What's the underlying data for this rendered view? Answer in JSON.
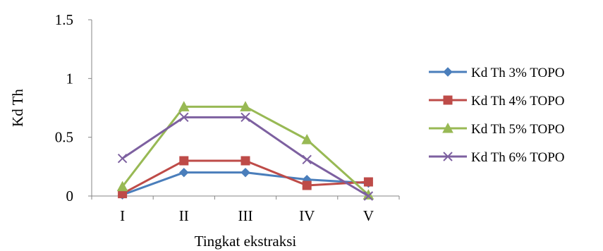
{
  "chart_data": {
    "type": "line",
    "title": "",
    "xlabel": "Tingkat ekstraksi",
    "ylabel": "Kd Th",
    "categories": [
      "I",
      "II",
      "III",
      "IV",
      "V"
    ],
    "ylim": [
      0,
      1.5
    ],
    "yticks": [
      0,
      0.5,
      1,
      1.5
    ],
    "grid": false,
    "legend_position": "right",
    "series": [
      {
        "name": "Kd Th 3% TOPO",
        "color": "#4a7ebb",
        "marker": "diamond",
        "values": [
          0.01,
          0.2,
          0.2,
          0.14,
          0.11
        ]
      },
      {
        "name": "Kd Th 4% TOPO",
        "color": "#be4b48",
        "marker": "square",
        "values": [
          0.02,
          0.3,
          0.3,
          0.09,
          0.12
        ]
      },
      {
        "name": "Kd Th 5% TOPO",
        "color": "#98b954",
        "marker": "triangle",
        "values": [
          0.08,
          0.76,
          0.76,
          0.48,
          0.01
        ]
      },
      {
        "name": "Kd Th 6% TOPO",
        "color": "#7d60a0",
        "marker": "x",
        "values": [
          0.32,
          0.67,
          0.67,
          0.31,
          0.0
        ]
      }
    ]
  }
}
